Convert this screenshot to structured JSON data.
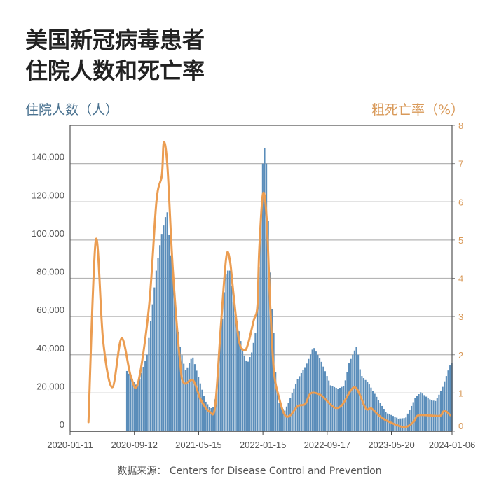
{
  "header": {
    "title_line1": "美国新冠病毒患者",
    "title_line2": "住院人数和死亡率"
  },
  "source": "数据来源： Centers for Disease Control and Prevention",
  "colors": {
    "bars": "#5a8dba",
    "line": "#eb9d52",
    "grid": "#b5b5b5",
    "left_axis_text": "#4a7290",
    "right_axis_text": "#d99a5a"
  },
  "chart_data": {
    "type": "bar+line",
    "title": "美国新冠病毒患者住院人数和死亡率",
    "ylabel_left": "住院人数（人）",
    "ylabel_right": "粗死亡率（%）",
    "ylim_left": [
      0,
      160000
    ],
    "ylim_right": [
      0,
      8
    ],
    "xlim": [
      "2020-01-11",
      "2024-01-06"
    ],
    "grid": true,
    "x_ticks": [
      "2020-01-11",
      "2020-09-12",
      "2021-05-15",
      "2022-01-15",
      "2022-09-17",
      "2023-05-20",
      "2024-01-06"
    ],
    "y_ticks_left": [
      "0",
      "20,000",
      "40,000",
      "60,000",
      "80,000",
      "100,000",
      "120,000",
      "140,000"
    ],
    "y_ticks_right": [
      "0",
      "1",
      "2",
      "3",
      "4",
      "5",
      "6",
      "7",
      "8"
    ],
    "bars": {
      "axis": "left",
      "frequency": "weekly",
      "first_week": "2020-08-15",
      "values": [
        31500,
        30100,
        28700,
        27200,
        25800,
        24400,
        24300,
        27400,
        30500,
        33700,
        36800,
        40000,
        48800,
        57600,
        66400,
        75200,
        84000,
        90700,
        97300,
        103200,
        107600,
        112000,
        114500,
        102600,
        92000,
        82000,
        72000,
        62000,
        52000,
        44200,
        39800,
        35300,
        32000,
        33400,
        35600,
        37800,
        38500,
        35100,
        31700,
        28400,
        25000,
        21700,
        18300,
        15400,
        14100,
        12800,
        12100,
        12800,
        16700,
        22000,
        33000,
        46000,
        59000,
        72700,
        82000,
        84000,
        84000,
        76000,
        67700,
        63200,
        57700,
        52300,
        47200,
        43400,
        39600,
        37000,
        36400,
        38800,
        41200,
        46200,
        51500,
        65700,
        86000,
        113000,
        140000,
        148000,
        140000,
        110000,
        83000,
        64000,
        51500,
        31000,
        21000,
        15000,
        12800,
        11700,
        10800,
        12900,
        15000,
        17300,
        19800,
        22400,
        24900,
        27200,
        28800,
        30400,
        32000,
        33500,
        35400,
        37800,
        40200,
        42700,
        43500,
        41700,
        39900,
        38100,
        36300,
        33800,
        31400,
        28900,
        26500,
        24000,
        23600,
        23100,
        22700,
        22300,
        22700,
        23200,
        23600,
        26600,
        31100,
        35500,
        37800,
        40000,
        42200,
        44300,
        40000,
        32400,
        28900,
        27800,
        26800,
        25700,
        24500,
        22800,
        21200,
        19600,
        18000,
        16200,
        14700,
        13200,
        11700,
        10200,
        9300,
        8900,
        8500,
        8000,
        7500,
        7100,
        6600,
        6700,
        6800,
        6900,
        7200,
        9200,
        11200,
        13200,
        15200,
        17300,
        18400,
        19400,
        20400,
        19700,
        18900,
        18100,
        17300,
        16700,
        16400,
        16000,
        15800,
        17200,
        19100,
        21100,
        23200,
        26100,
        28900,
        31800,
        34400,
        35800
      ]
    },
    "line": {
      "axis": "right",
      "points": [
        [
          "2020-03-21",
          0.24
        ],
        [
          "2020-04-18",
          5.0
        ],
        [
          "2020-05-16",
          2.36
        ],
        [
          "2020-06-20",
          1.15
        ],
        [
          "2020-07-25",
          2.43
        ],
        [
          "2020-08-29",
          1.45
        ],
        [
          "2020-09-26",
          1.26
        ],
        [
          "2020-11-07",
          3.27
        ],
        [
          "2020-12-05",
          6.0
        ],
        [
          "2020-12-26",
          6.7
        ],
        [
          "2021-01-02",
          7.55
        ],
        [
          "2021-01-16",
          6.93
        ],
        [
          "2021-02-06",
          4.19
        ],
        [
          "2021-03-06",
          1.76
        ],
        [
          "2021-03-20",
          1.26
        ],
        [
          "2021-04-24",
          1.33
        ],
        [
          "2021-05-22",
          0.84
        ],
        [
          "2021-06-26",
          0.51
        ],
        [
          "2021-07-17",
          0.66
        ],
        [
          "2021-08-07",
          2.67
        ],
        [
          "2021-08-28",
          4.53
        ],
        [
          "2021-09-11",
          4.48
        ],
        [
          "2021-09-25",
          3.58
        ],
        [
          "2021-10-16",
          2.36
        ],
        [
          "2021-11-06",
          2.12
        ],
        [
          "2021-11-20",
          2.3
        ],
        [
          "2021-12-11",
          2.9
        ],
        [
          "2021-12-25",
          3.27
        ],
        [
          "2022-01-01",
          4.73
        ],
        [
          "2022-01-15",
          6.2
        ],
        [
          "2022-01-29",
          5.6
        ],
        [
          "2022-02-12",
          3.27
        ],
        [
          "2022-02-26",
          1.57
        ],
        [
          "2022-03-19",
          0.84
        ],
        [
          "2022-04-09",
          0.42
        ],
        [
          "2022-04-30",
          0.42
        ],
        [
          "2022-05-28",
          0.66
        ],
        [
          "2022-06-25",
          0.71
        ],
        [
          "2022-07-16",
          0.99
        ],
        [
          "2022-08-20",
          0.96
        ],
        [
          "2022-09-17",
          0.79
        ],
        [
          "2022-10-15",
          0.62
        ],
        [
          "2022-11-12",
          0.68
        ],
        [
          "2022-12-31",
          1.15
        ],
        [
          "2023-02-11",
          0.6
        ],
        [
          "2023-03-04",
          0.6
        ],
        [
          "2023-04-08",
          0.38
        ],
        [
          "2023-05-13",
          0.24
        ],
        [
          "2023-07-08",
          0.11
        ],
        [
          "2023-08-12",
          0.24
        ],
        [
          "2023-09-02",
          0.42
        ],
        [
          "2023-11-18",
          0.4
        ],
        [
          "2023-12-02",
          0.51
        ],
        [
          "2023-12-16",
          0.51
        ],
        [
          "2023-12-30",
          0.42
        ]
      ]
    }
  }
}
